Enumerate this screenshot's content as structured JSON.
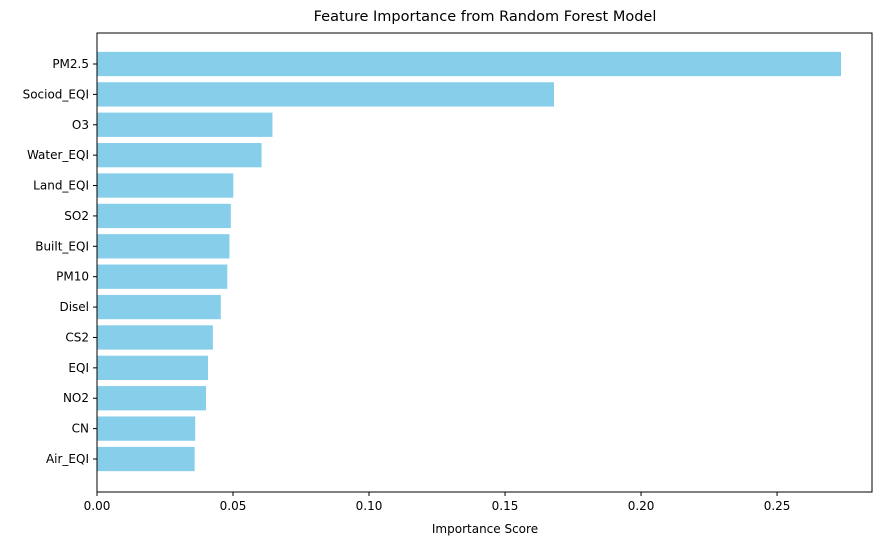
{
  "chart_data": {
    "type": "bar",
    "orientation": "horizontal",
    "title": "Feature Importance from Random Forest Model",
    "xlabel": "Importance Score",
    "ylabel": "",
    "xlim": [
      0,
      0.2849
    ],
    "xticks": [
      0.0,
      0.05,
      0.1,
      0.15,
      0.2,
      0.25
    ],
    "xtick_labels": [
      "0.00",
      "0.05",
      "0.10",
      "0.15",
      "0.20",
      "0.25"
    ],
    "grid": false,
    "legend": "none",
    "bar_color": "#87ceeb",
    "categories": [
      "PM2.5",
      "Sociod_EQI",
      "O3",
      "Water_EQI",
      "Land_EQI",
      "SO2",
      "Built_EQI",
      "PM10",
      "Disel",
      "CS2",
      "EQI",
      "NO2",
      "CN",
      "Air_EQI"
    ],
    "values": [
      0.2735,
      0.168,
      0.0645,
      0.0605,
      0.0501,
      0.0492,
      0.0487,
      0.0479,
      0.0455,
      0.0426,
      0.0408,
      0.0401,
      0.0361,
      0.0359
    ]
  }
}
